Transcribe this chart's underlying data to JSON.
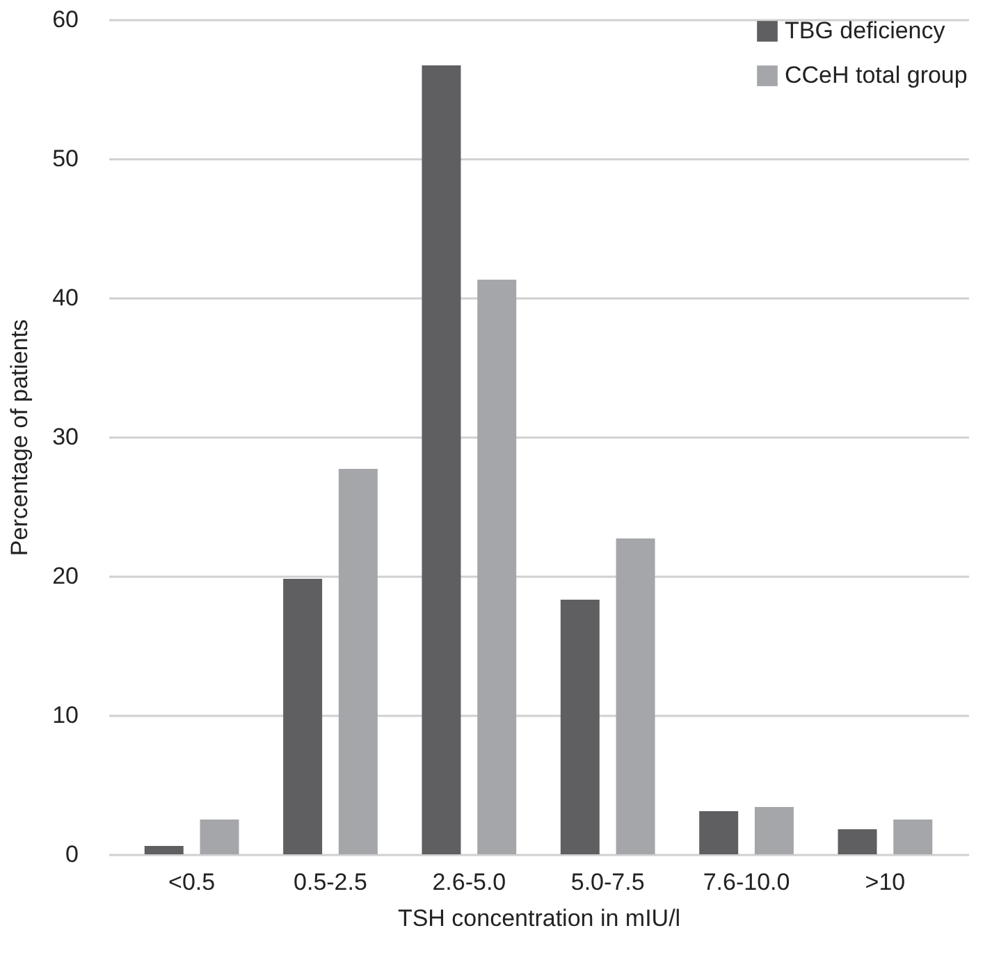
{
  "chart_data": {
    "type": "bar",
    "xlabel": "TSH concentration in mIU/l",
    "ylabel": "Percentage of patients",
    "categories": [
      "<0.5",
      "0.5-2.5",
      "2.6-5.0",
      "5.0-7.5",
      "7.6-10.0",
      ">10"
    ],
    "series": [
      {
        "name": "TBG deficiency",
        "color": "#5f5f62",
        "values": [
          0.6,
          19.8,
          56.7,
          18.3,
          3.1,
          1.8
        ]
      },
      {
        "name": "CCeH total group",
        "color": "#a5a6a9",
        "values": [
          2.5,
          27.7,
          41.3,
          22.7,
          3.4,
          2.5
        ]
      }
    ],
    "ylim": [
      0,
      60
    ],
    "yticks": [
      0,
      10,
      20,
      30,
      40,
      50,
      60
    ],
    "grid": "y",
    "legend": "top right"
  }
}
